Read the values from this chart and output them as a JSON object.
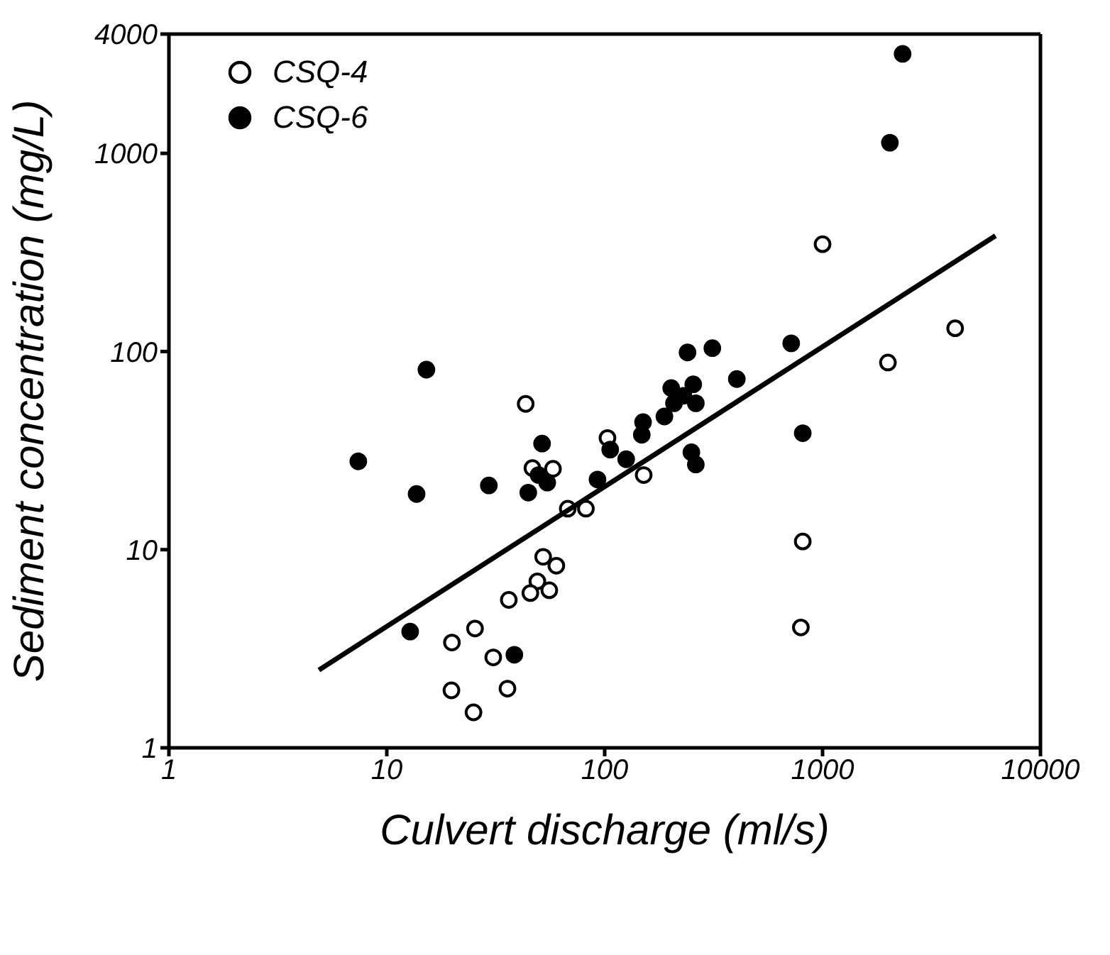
{
  "chart_data": {
    "type": "scatter",
    "xlabel": "Culvert discharge (ml/s)",
    "ylabel": "Sediment concentration (mg/L)",
    "log": "xy",
    "xlim": [
      1,
      10000
    ],
    "xticks": [
      1,
      10,
      100,
      1000,
      10000
    ],
    "ylim": [
      1,
      4000
    ],
    "yticks": [
      1,
      10,
      100,
      1000,
      4000
    ],
    "legend": "top left",
    "marker": "circle",
    "series": [
      {
        "name": "CSQ-4",
        "color": "#ffffff",
        "x": [
          43.4,
          103,
          46.6,
          57.9,
          151,
          67.7,
          82,
          52.2,
          60,
          49.1,
          45.6,
          55.7,
          36.3,
          25.4,
          19.9,
          30.8,
          19.8,
          35.8,
          25,
          811,
          795,
          1000,
          1995,
          4060
        ],
        "values": [
          54.4,
          36.6,
          25.8,
          25.6,
          23.8,
          16.1,
          16.1,
          9.2,
          8.3,
          6.92,
          6.04,
          6.24,
          5.58,
          4.0,
          3.4,
          2.86,
          1.95,
          1.99,
          1.51,
          11,
          4.05,
          348,
          88,
          131
        ]
      },
      {
        "name": "CSQ-6",
        "color": "#000000",
        "x": [
          7.4,
          13.7,
          15.2,
          29.4,
          44.6,
          51.6,
          49.7,
          54.5,
          92.7,
          106,
          125.5,
          148,
          150,
          188,
          202,
          255,
          208,
          230,
          262,
          240,
          312,
          404,
          250,
          262,
          718,
          811,
          2037,
          2330,
          12.8,
          38.5
        ],
        "values": [
          27.9,
          19.1,
          81,
          21.1,
          19.4,
          34.3,
          23.8,
          21.8,
          22.6,
          32,
          28.6,
          38,
          44,
          47,
          65.4,
          68.3,
          54.8,
          59.8,
          54.8,
          98.9,
          104,
          72.6,
          31,
          26.9,
          110,
          38.7,
          1132,
          3177,
          3.86,
          2.95
        ]
      },
      {
        "type": "line",
        "color": "#000000",
        "marker": "none",
        "x": [
          4.88,
          6220
        ],
        "values": [
          2.47,
          384
        ]
      }
    ]
  }
}
